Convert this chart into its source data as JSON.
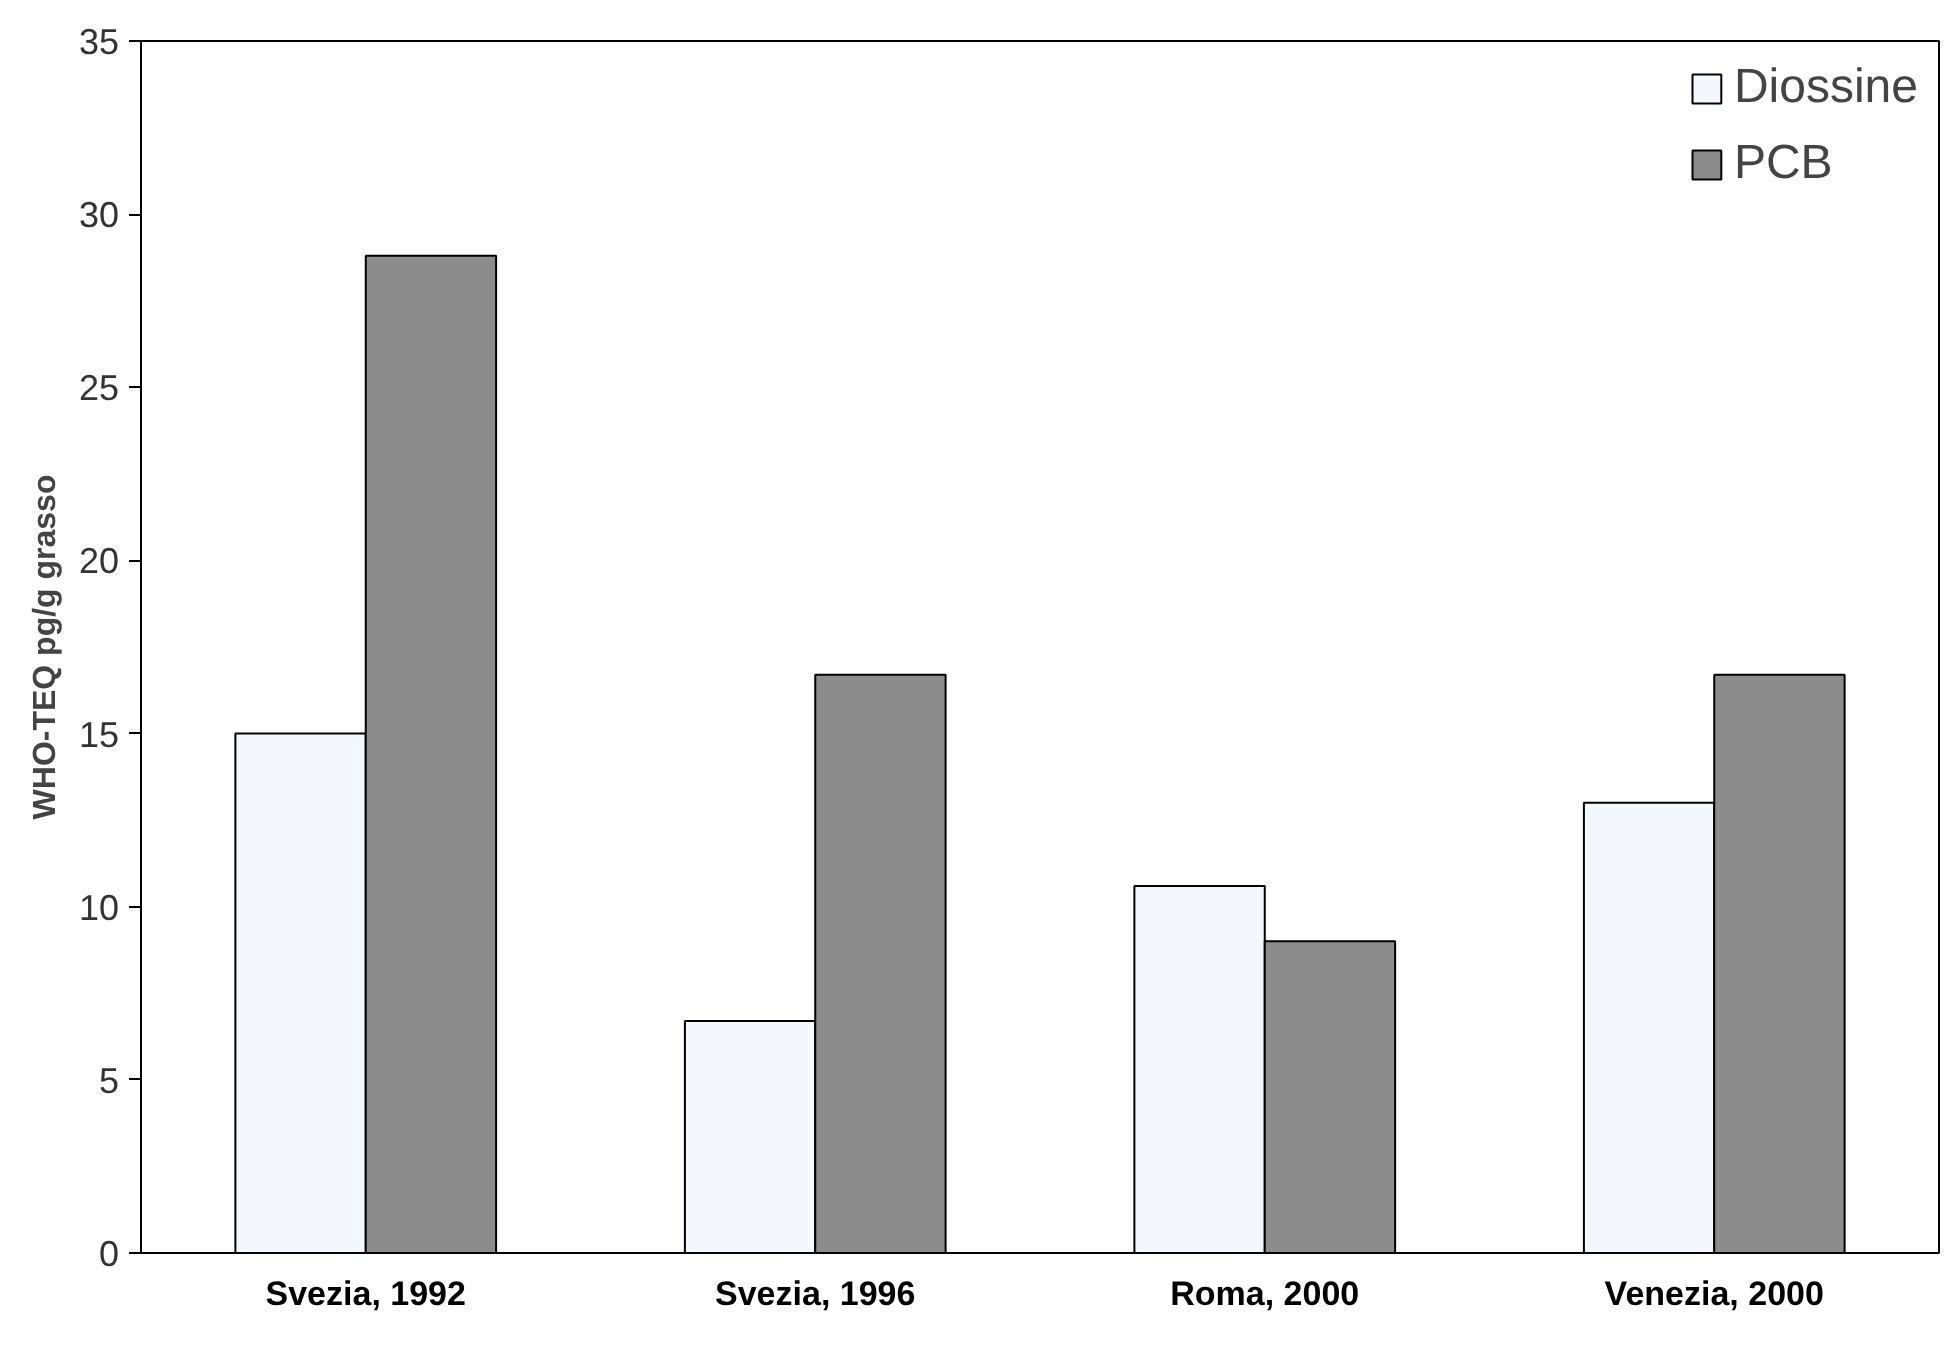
{
  "chart_data": {
    "type": "bar",
    "ylabel": "WHO-TEQ pg/g grasso",
    "categories": [
      "Svezia, 1992",
      "Svezia, 1996",
      "Roma, 2000",
      "Venezia, 2000"
    ],
    "series": [
      {
        "name": "Diossine",
        "color": "#f4f8fc",
        "values": [
          15.0,
          6.7,
          10.6,
          13.0
        ]
      },
      {
        "name": "PCB",
        "color": "#8c8c8c",
        "values": [
          28.8,
          16.7,
          9.0,
          16.7
        ]
      }
    ],
    "ylim": [
      0,
      35
    ],
    "yticks": [
      0,
      5,
      10,
      15,
      20,
      25,
      30,
      35
    ],
    "grid": false,
    "legend": "top right"
  }
}
